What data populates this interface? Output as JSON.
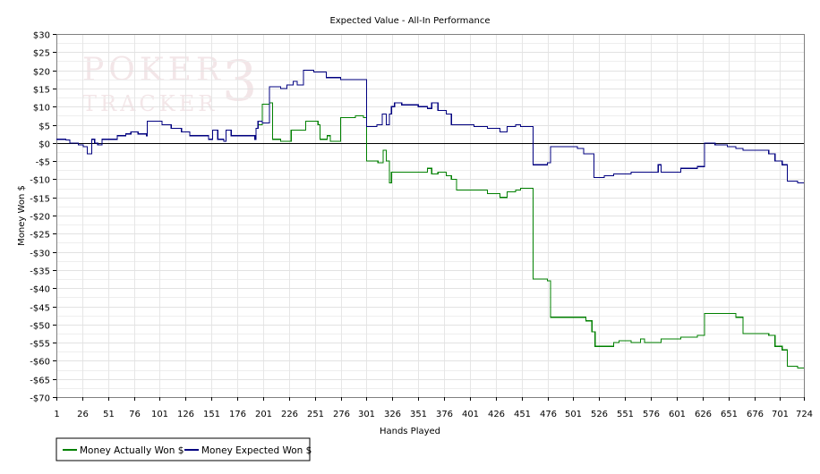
{
  "chart_data": {
    "type": "line",
    "title": "Expected Value - All-In Performance",
    "xlabel": "Hands Played",
    "ylabel": "Money Won $",
    "xlim": [
      1,
      724
    ],
    "ylim": [
      -70,
      30
    ],
    "x_ticks": [
      1,
      26,
      51,
      76,
      101,
      126,
      151,
      176,
      201,
      226,
      251,
      276,
      301,
      326,
      351,
      376,
      401,
      426,
      451,
      476,
      501,
      526,
      551,
      576,
      601,
      626,
      651,
      676,
      701,
      724
    ],
    "y_ticks": [
      30,
      25,
      20,
      15,
      10,
      5,
      0,
      -5,
      -10,
      -15,
      -20,
      -25,
      -30,
      -35,
      -40,
      -45,
      -50,
      -55,
      -60,
      -65,
      -70
    ],
    "y_tick_labels": [
      "$30",
      "$25",
      "$20",
      "$15",
      "$10",
      "$5",
      "$0",
      "-$5",
      "-$10",
      "-$15",
      "-$20",
      "-$25",
      "-$30",
      "-$35",
      "-$40",
      "-$45",
      "-$50",
      "-$55",
      "-$60",
      "-$65",
      "-$70"
    ],
    "grid": true,
    "zero_line": true,
    "legend_position": "bottom-left",
    "series": [
      {
        "name": "Money Actually Won $",
        "color": "#008000",
        "points": [
          [
            1,
            1
          ],
          [
            10,
            0.8
          ],
          [
            14,
            0
          ],
          [
            22,
            -0.5
          ],
          [
            27,
            -1
          ],
          [
            31,
            -3
          ],
          [
            35,
            1
          ],
          [
            38,
            0
          ],
          [
            41,
            -0.5
          ],
          [
            45,
            1
          ],
          [
            50,
            1
          ],
          [
            60,
            2
          ],
          [
            68,
            2.5
          ],
          [
            73,
            3
          ],
          [
            80,
            2.5
          ],
          [
            88,
            2
          ],
          [
            89,
            6
          ],
          [
            103,
            5
          ],
          [
            109,
            5
          ],
          [
            112,
            4
          ],
          [
            122,
            3
          ],
          [
            130,
            2
          ],
          [
            142,
            2
          ],
          [
            148,
            1
          ],
          [
            152,
            3.5
          ],
          [
            157,
            1
          ],
          [
            163,
            0.5
          ],
          [
            165,
            3.5
          ],
          [
            170,
            2
          ],
          [
            188,
            2
          ],
          [
            193,
            1
          ],
          [
            194,
            4
          ],
          [
            196,
            5
          ],
          [
            200,
            10.7
          ],
          [
            207,
            11
          ],
          [
            210,
            1
          ],
          [
            218,
            0.5
          ],
          [
            224,
            0.5
          ],
          [
            228,
            3.5
          ],
          [
            240,
            3.5
          ],
          [
            242,
            6
          ],
          [
            254,
            5
          ],
          [
            256,
            1
          ],
          [
            260,
            1
          ],
          [
            263,
            2
          ],
          [
            266,
            0.5
          ],
          [
            273,
            0.5
          ],
          [
            276,
            7
          ],
          [
            290,
            7.5
          ],
          [
            298,
            7
          ],
          [
            301,
            -5
          ],
          [
            312,
            -5.5
          ],
          [
            317,
            -2
          ],
          [
            320,
            -5
          ],
          [
            323,
            -11
          ],
          [
            325,
            -8
          ],
          [
            355,
            -8
          ],
          [
            360,
            -7
          ],
          [
            364,
            -8.5
          ],
          [
            370,
            -8
          ],
          [
            378,
            -9
          ],
          [
            383,
            -10
          ],
          [
            388,
            -13
          ],
          [
            405,
            -13
          ],
          [
            418,
            -14
          ],
          [
            430,
            -15
          ],
          [
            437,
            -13.5
          ],
          [
            445,
            -13
          ],
          [
            450,
            -12.5
          ],
          [
            459,
            -12.5
          ],
          [
            462,
            -37.5
          ],
          [
            476,
            -38
          ],
          [
            479,
            -48
          ],
          [
            513,
            -49
          ],
          [
            519,
            -52
          ],
          [
            522,
            -56
          ],
          [
            531,
            -56
          ],
          [
            540,
            -55
          ],
          [
            545,
            -54.5
          ],
          [
            557,
            -55
          ],
          [
            566,
            -54
          ],
          [
            570,
            -55
          ],
          [
            577,
            -55
          ],
          [
            584,
            -55
          ],
          [
            586,
            -54
          ],
          [
            605,
            -53.5
          ],
          [
            621,
            -53
          ],
          [
            628,
            -47
          ],
          [
            638,
            -47
          ],
          [
            650,
            -47
          ],
          [
            658,
            -48
          ],
          [
            665,
            -52.5
          ],
          [
            686,
            -52.5
          ],
          [
            690,
            -53
          ],
          [
            696,
            -56
          ],
          [
            703,
            -57
          ],
          [
            708,
            -61.5
          ],
          [
            718,
            -62
          ],
          [
            724,
            -62
          ]
        ]
      },
      {
        "name": "Money Expected Won $",
        "color": "#000080",
        "points": [
          [
            1,
            1
          ],
          [
            10,
            0.8
          ],
          [
            14,
            0
          ],
          [
            22,
            -0.5
          ],
          [
            27,
            -1
          ],
          [
            31,
            -3
          ],
          [
            35,
            1
          ],
          [
            38,
            0
          ],
          [
            41,
            -0.5
          ],
          [
            45,
            1
          ],
          [
            50,
            1
          ],
          [
            60,
            2
          ],
          [
            68,
            2.5
          ],
          [
            73,
            3
          ],
          [
            80,
            2.5
          ],
          [
            88,
            2
          ],
          [
            89,
            6
          ],
          [
            103,
            5
          ],
          [
            109,
            5
          ],
          [
            112,
            4
          ],
          [
            122,
            3
          ],
          [
            130,
            2
          ],
          [
            142,
            2
          ],
          [
            148,
            1
          ],
          [
            152,
            3.5
          ],
          [
            157,
            1
          ],
          [
            163,
            0.5
          ],
          [
            165,
            3.5
          ],
          [
            170,
            2
          ],
          [
            188,
            2
          ],
          [
            193,
            1
          ],
          [
            194,
            4
          ],
          [
            196,
            6
          ],
          [
            200,
            5.5
          ],
          [
            207,
            15.5
          ],
          [
            218,
            15
          ],
          [
            224,
            16
          ],
          [
            230,
            17
          ],
          [
            234,
            16
          ],
          [
            240,
            20
          ],
          [
            250,
            19.5
          ],
          [
            262,
            18
          ],
          [
            270,
            18
          ],
          [
            276,
            17.5
          ],
          [
            298,
            17.5
          ],
          [
            301,
            4.5
          ],
          [
            311,
            5
          ],
          [
            316,
            8
          ],
          [
            320,
            5
          ],
          [
            323,
            8
          ],
          [
            325,
            10
          ],
          [
            328,
            11
          ],
          [
            335,
            10.5
          ],
          [
            351,
            10
          ],
          [
            355,
            10
          ],
          [
            360,
            9.5
          ],
          [
            364,
            11
          ],
          [
            370,
            9
          ],
          [
            378,
            8
          ],
          [
            383,
            5
          ],
          [
            405,
            4.5
          ],
          [
            418,
            4
          ],
          [
            425,
            4
          ],
          [
            430,
            3
          ],
          [
            437,
            4.5
          ],
          [
            445,
            5
          ],
          [
            450,
            4.5
          ],
          [
            459,
            4.5
          ],
          [
            462,
            -6
          ],
          [
            476,
            -5.5
          ],
          [
            479,
            -1
          ],
          [
            505,
            -1.5
          ],
          [
            511,
            -3
          ],
          [
            521,
            -9.5
          ],
          [
            531,
            -9
          ],
          [
            540,
            -8.5
          ],
          [
            557,
            -8
          ],
          [
            566,
            -8
          ],
          [
            577,
            -8
          ],
          [
            583,
            -6
          ],
          [
            586,
            -8
          ],
          [
            605,
            -7
          ],
          [
            621,
            -6.5
          ],
          [
            628,
            0
          ],
          [
            638,
            -0.5
          ],
          [
            650,
            -1
          ],
          [
            658,
            -1.5
          ],
          [
            665,
            -2
          ],
          [
            686,
            -2
          ],
          [
            690,
            -3
          ],
          [
            696,
            -5
          ],
          [
            703,
            -6
          ],
          [
            708,
            -10.5
          ],
          [
            718,
            -11
          ],
          [
            724,
            -11
          ]
        ]
      }
    ]
  },
  "watermark": {
    "line1": "POKER",
    "line2": "TRACKER",
    "digit": "3"
  }
}
